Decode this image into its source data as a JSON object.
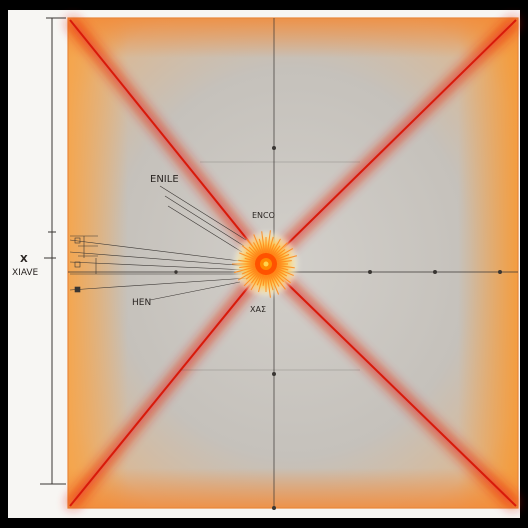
{
  "labels": {
    "upper_left": "ENILE",
    "center_upper": "ENCO",
    "left_margin_top": "X",
    "left_margin_bottom": "XIAVE",
    "left_lower": "HEN",
    "center_lower": "ΧΑΣ"
  },
  "colors": {
    "frame_orange": "#f59b3a",
    "diagonal_red": "#e11e0c",
    "fill_gray": "#c7c3bd",
    "burst_core": "#ff5a00",
    "burst_glow": "#ffd34d",
    "ink": "#3a3633",
    "paper": "#f7f6f3",
    "border": "#000000"
  }
}
